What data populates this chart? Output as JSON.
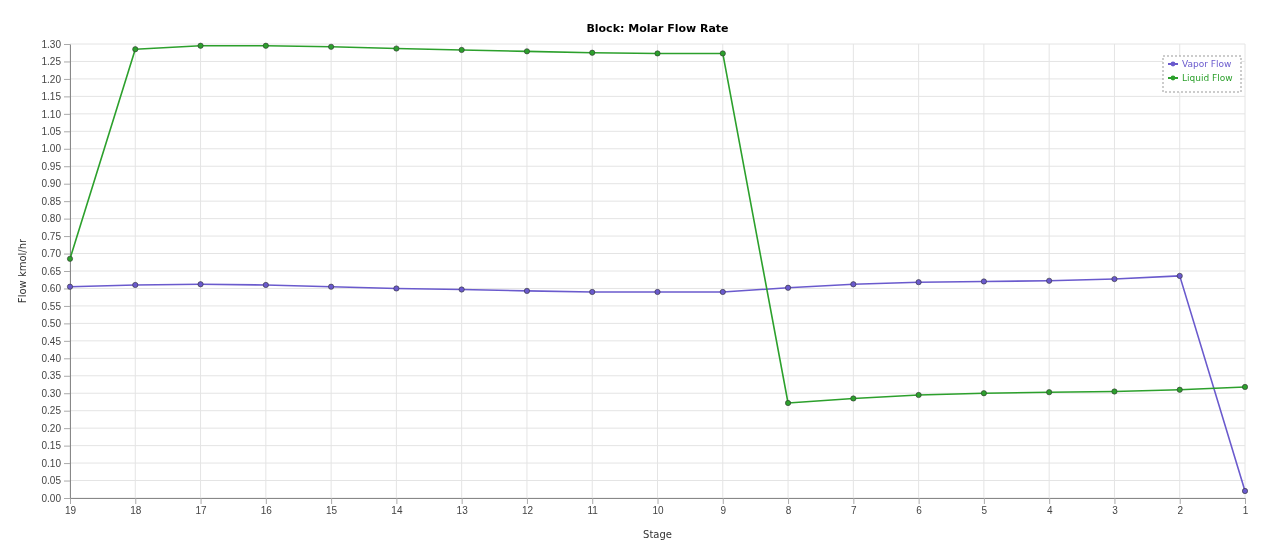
{
  "chart_data": {
    "type": "line",
    "title": "Block: Molar Flow Rate",
    "xlabel": "Stage",
    "ylabel": "Flow kmol/hr",
    "x": [
      19,
      18,
      17,
      16,
      15,
      14,
      13,
      12,
      11,
      10,
      9,
      8,
      7,
      6,
      5,
      4,
      3,
      2,
      1
    ],
    "xlim": [
      19,
      1
    ],
    "xticks": [
      19,
      18,
      17,
      16,
      15,
      14,
      13,
      12,
      11,
      10,
      9,
      8,
      7,
      6,
      5,
      4,
      3,
      2,
      1
    ],
    "ylim": [
      0,
      1.3
    ],
    "yticks": [
      {
        "value": 0,
        "label": "0.00"
      },
      {
        "value": 0.05,
        "label": "0.05"
      },
      {
        "value": 0.1,
        "label": "0.10"
      },
      {
        "value": 0.15,
        "label": "0.15"
      },
      {
        "value": 0.2,
        "label": "0.20"
      },
      {
        "value": 0.25,
        "label": "0.25"
      },
      {
        "value": 0.3,
        "label": "0.30"
      },
      {
        "value": 0.35,
        "label": "0.35"
      },
      {
        "value": 0.4,
        "label": "0.40"
      },
      {
        "value": 0.45,
        "label": "0.45"
      },
      {
        "value": 0.5,
        "label": "0.50"
      },
      {
        "value": 0.55,
        "label": "0.55"
      },
      {
        "value": 0.6,
        "label": "0.60"
      },
      {
        "value": 0.65,
        "label": "0.65"
      },
      {
        "value": 0.7,
        "label": "0.70"
      },
      {
        "value": 0.75,
        "label": "0.75"
      },
      {
        "value": 0.8,
        "label": "0.80"
      },
      {
        "value": 0.85,
        "label": "0.85"
      },
      {
        "value": 0.9,
        "label": "0.90"
      },
      {
        "value": 0.95,
        "label": "0.95"
      },
      {
        "value": 1,
        "label": "1.00"
      },
      {
        "value": 1.05,
        "label": "1.05"
      },
      {
        "value": 1.1,
        "label": "1.10"
      },
      {
        "value": 1.15,
        "label": "1.15"
      },
      {
        "value": 1.2,
        "label": "1.20"
      },
      {
        "value": 1.25,
        "label": "1.25"
      },
      {
        "value": 1.3,
        "label": "1.30"
      }
    ],
    "grid": true,
    "legend": "top right",
    "marker": "circle",
    "line_style": "solid",
    "series": [
      {
        "name": "Vapor Flow",
        "color": "#6a5acd",
        "values": [
          0.605,
          0.61,
          0.612,
          0.61,
          0.605,
          0.6,
          0.597,
          0.593,
          0.59,
          0.59,
          0.59,
          0.602,
          0.612,
          0.618,
          0.62,
          0.622,
          0.627,
          0.636,
          0.02
        ]
      },
      {
        "name": "Liquid Flow",
        "color": "#2ca02c",
        "values": [
          0.685,
          1.285,
          1.295,
          1.295,
          1.292,
          1.287,
          1.283,
          1.279,
          1.275,
          1.273,
          1.273,
          0.272,
          0.285,
          0.295,
          0.3,
          0.303,
          0.305,
          0.31,
          0.318
        ]
      }
    ]
  }
}
